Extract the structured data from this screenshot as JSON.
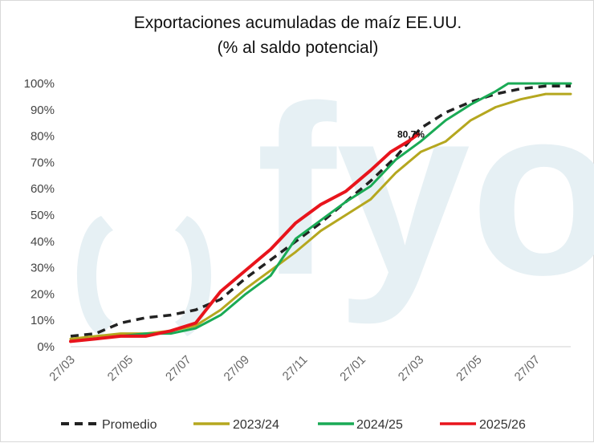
{
  "chart_data": {
    "type": "line",
    "title_line1": "Exportaciones acumuladas de maíz EE.UU.",
    "title_line2": "(% al saldo potencial)",
    "watermark": "fyo",
    "y_tick_labels": [
      "0%",
      "10%",
      "20%",
      "30%",
      "40%",
      "50%",
      "60%",
      "70%",
      "80%",
      "90%",
      "100%"
    ],
    "x_tick_labels": [
      "27/03",
      "27/05",
      "27/07",
      "27/09",
      "27/11",
      "27/01",
      "27/03",
      "27/05",
      "27/07"
    ],
    "ylim": [
      0,
      100
    ],
    "xlim": [
      0,
      20
    ],
    "annotation": {
      "text": "80,7%",
      "x": 13.0,
      "y": 80.7
    },
    "series": [
      {
        "name": "Promedio",
        "color": "#222222",
        "dash": "10,7",
        "width": 3.5,
        "points": [
          [
            0,
            4
          ],
          [
            1,
            5
          ],
          [
            2,
            9
          ],
          [
            3,
            11
          ],
          [
            4,
            12
          ],
          [
            5,
            14
          ],
          [
            6,
            18
          ],
          [
            7,
            26
          ],
          [
            8,
            33
          ],
          [
            9,
            40
          ],
          [
            10,
            47
          ],
          [
            11,
            55
          ],
          [
            12,
            63
          ],
          [
            13,
            72
          ],
          [
            14,
            83
          ],
          [
            15,
            89
          ],
          [
            16,
            93
          ],
          [
            17,
            96
          ],
          [
            18,
            98
          ],
          [
            19,
            99
          ],
          [
            20,
            99
          ]
        ]
      },
      {
        "name": "2023/24",
        "color": "#b5a71f",
        "dash": "",
        "width": 3,
        "points": [
          [
            0,
            3
          ],
          [
            1,
            4
          ],
          [
            2,
            5
          ],
          [
            3,
            5
          ],
          [
            4,
            6
          ],
          [
            5,
            8
          ],
          [
            6,
            14
          ],
          [
            7,
            22
          ],
          [
            8,
            29
          ],
          [
            9,
            36
          ],
          [
            10,
            44
          ],
          [
            11,
            50
          ],
          [
            12,
            56
          ],
          [
            13,
            66
          ],
          [
            14,
            74
          ],
          [
            15,
            78
          ],
          [
            16,
            86
          ],
          [
            17,
            91
          ],
          [
            18,
            94
          ],
          [
            19,
            96
          ],
          [
            20,
            96
          ]
        ]
      },
      {
        "name": "2024/25",
        "color": "#1aaa55",
        "dash": "",
        "width": 3,
        "points": [
          [
            0,
            2
          ],
          [
            1,
            3
          ],
          [
            2,
            4
          ],
          [
            3,
            5
          ],
          [
            4,
            5
          ],
          [
            5,
            7
          ],
          [
            6,
            12
          ],
          [
            7,
            20
          ],
          [
            8,
            27
          ],
          [
            9,
            41
          ],
          [
            10,
            48
          ],
          [
            11,
            55
          ],
          [
            12,
            61
          ],
          [
            13,
            71
          ],
          [
            14,
            78
          ],
          [
            15,
            86
          ],
          [
            16,
            92
          ],
          [
            17,
            97
          ],
          [
            17.5,
            100
          ],
          [
            18.5,
            100
          ],
          [
            20,
            100
          ]
        ]
      },
      {
        "name": "2025/26",
        "color": "#e8141c",
        "dash": "",
        "width": 4,
        "points": [
          [
            0,
            2
          ],
          [
            1,
            3
          ],
          [
            2,
            4
          ],
          [
            3,
            4
          ],
          [
            4,
            6
          ],
          [
            5,
            9
          ],
          [
            6,
            21
          ],
          [
            7,
            29
          ],
          [
            8,
            37
          ],
          [
            9,
            47
          ],
          [
            10,
            54
          ],
          [
            11,
            59
          ],
          [
            12,
            67
          ],
          [
            12.8,
            74
          ],
          [
            13.5,
            78
          ],
          [
            13.9,
            80.7
          ]
        ]
      }
    ]
  }
}
